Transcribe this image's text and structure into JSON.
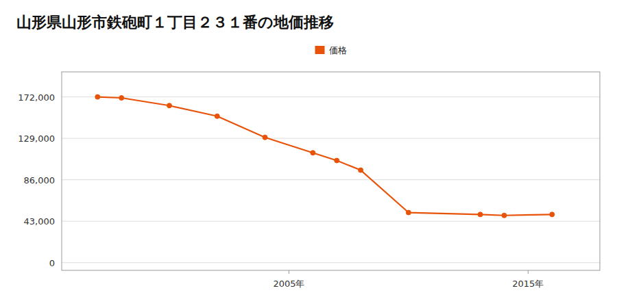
{
  "chart_data": {
    "type": "line",
    "title": "山形県山形市鉄砲町１丁目２３１番の地価推移",
    "x": [
      1997,
      1998,
      2000,
      2002,
      2004,
      2006,
      2007,
      2008,
      2010,
      2013,
      2014,
      2016
    ],
    "series": [
      {
        "name": "価格",
        "color": "#e8530a",
        "marker": "circle",
        "values": [
          172000,
          171000,
          163000,
          152000,
          130000,
          114000,
          106000,
          96000,
          52000,
          50000,
          49000,
          50000
        ]
      }
    ],
    "xlim": [
      1995.5,
      2018
    ],
    "xticks": [
      {
        "value": 2005,
        "label": "2005年"
      },
      {
        "value": 2015,
        "label": "2015年"
      }
    ],
    "ylim": [
      -8000,
      198000
    ],
    "yticks": [
      0,
      {
        "value": 43000,
        "label": "43,000"
      },
      {
        "value": 86000,
        "label": "86,000"
      },
      {
        "value": 129000,
        "label": "129,000"
      },
      {
        "value": 172000,
        "label": "172,000"
      }
    ],
    "grid": true,
    "legend": "top"
  }
}
